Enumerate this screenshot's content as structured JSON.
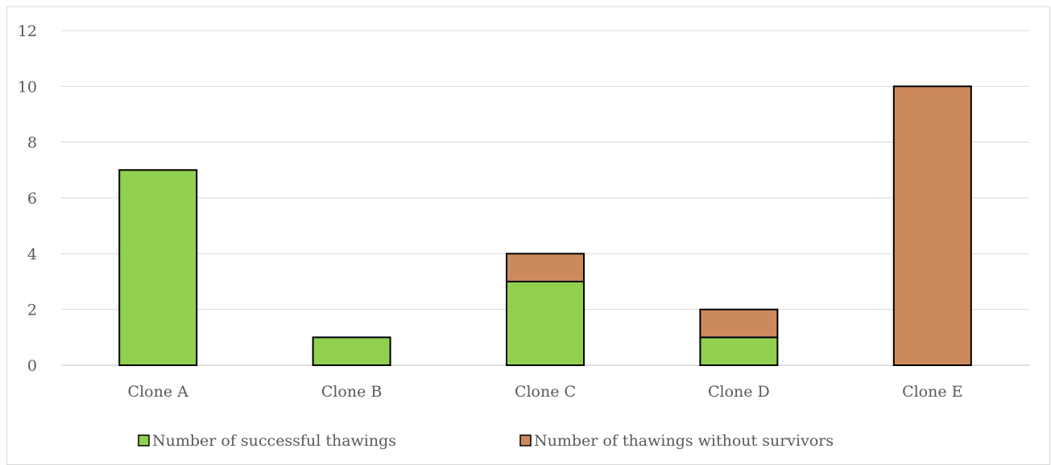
{
  "chart_data": {
    "type": "bar",
    "stacked": true,
    "categories": [
      "Clone A",
      "Clone B",
      "Clone C",
      "Clone D",
      "Clone E"
    ],
    "series": [
      {
        "name": "Number of successful thawings",
        "values": [
          7,
          1,
          3,
          1,
          0
        ],
        "color": "#92d050"
      },
      {
        "name": "Number of thawings without survivors",
        "values": [
          0,
          0,
          1,
          1,
          10
        ],
        "color": "#cc8a5c"
      }
    ],
    "ylim": [
      0,
      12
    ],
    "yticks": [
      "0",
      "2",
      "4",
      "6",
      "8",
      "10",
      "12"
    ],
    "grid": true,
    "legend_position": "bottom",
    "title": "",
    "xlabel": "",
    "ylabel": ""
  }
}
